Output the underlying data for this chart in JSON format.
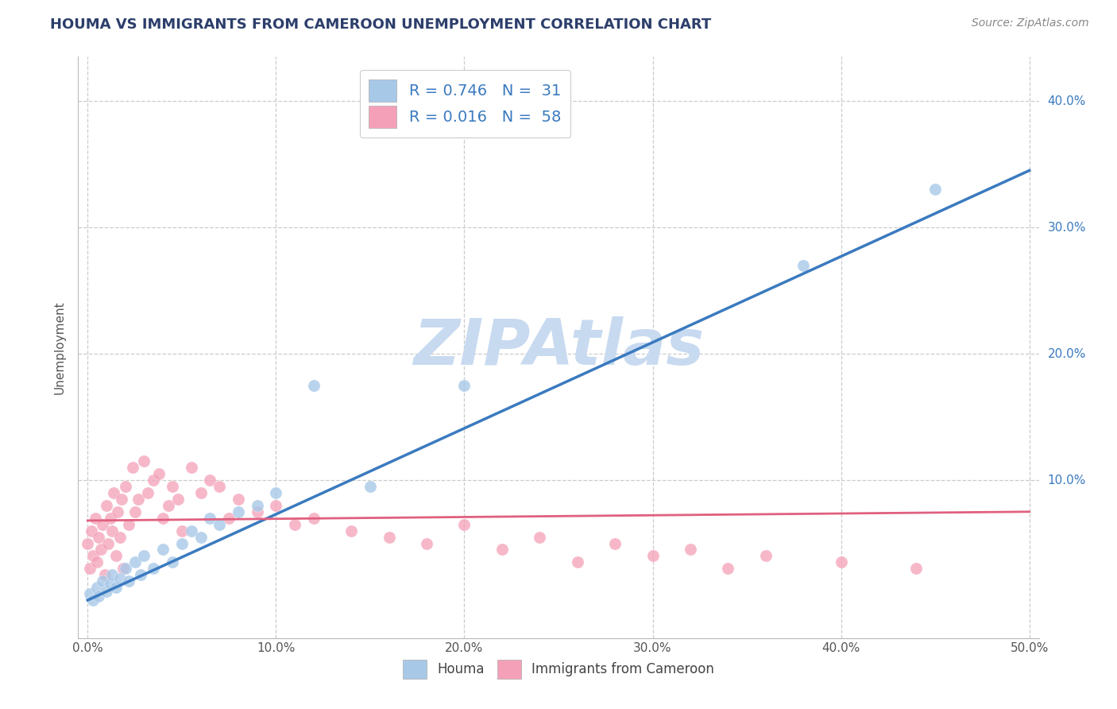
{
  "title": "HOUMA VS IMMIGRANTS FROM CAMEROON UNEMPLOYMENT CORRELATION CHART",
  "source_text": "Source: ZipAtlas.com",
  "ylabel": "Unemployment",
  "xlim": [
    -0.005,
    0.505
  ],
  "ylim": [
    -0.025,
    0.435
  ],
  "xtick_labels": [
    "0.0%",
    "10.0%",
    "20.0%",
    "30.0%",
    "40.0%",
    "50.0%"
  ],
  "xtick_values": [
    0.0,
    0.1,
    0.2,
    0.3,
    0.4,
    0.5
  ],
  "ytick_labels": [
    "10.0%",
    "20.0%",
    "30.0%",
    "40.0%"
  ],
  "ytick_values": [
    0.1,
    0.2,
    0.3,
    0.4
  ],
  "blue_color": "#a8c8e8",
  "pink_color": "#f4a0b8",
  "blue_line_color": "#3a7abf",
  "pink_line_color": "#e06080",
  "title_color": "#2c3e6b",
  "source_color": "#888888",
  "watermark_color": "#c8daf0",
  "R_blue": 0.746,
  "N_blue": 31,
  "R_pink": 0.016,
  "N_pink": 58,
  "blue_scatter_x": [
    0.001,
    0.003,
    0.005,
    0.006,
    0.008,
    0.01,
    0.012,
    0.013,
    0.015,
    0.017,
    0.02,
    0.022,
    0.025,
    0.028,
    0.03,
    0.035,
    0.04,
    0.045,
    0.05,
    0.055,
    0.06,
    0.065,
    0.07,
    0.08,
    0.09,
    0.1,
    0.12,
    0.15,
    0.2,
    0.38,
    0.45
  ],
  "blue_scatter_y": [
    0.01,
    0.005,
    0.015,
    0.008,
    0.02,
    0.012,
    0.018,
    0.025,
    0.015,
    0.022,
    0.03,
    0.02,
    0.035,
    0.025,
    0.04,
    0.03,
    0.045,
    0.035,
    0.05,
    0.06,
    0.055,
    0.07,
    0.065,
    0.075,
    0.08,
    0.09,
    0.175,
    0.095,
    0.175,
    0.27,
    0.33
  ],
  "pink_scatter_x": [
    0.0,
    0.001,
    0.002,
    0.003,
    0.004,
    0.005,
    0.006,
    0.007,
    0.008,
    0.009,
    0.01,
    0.011,
    0.012,
    0.013,
    0.014,
    0.015,
    0.016,
    0.017,
    0.018,
    0.019,
    0.02,
    0.022,
    0.024,
    0.025,
    0.027,
    0.03,
    0.032,
    0.035,
    0.038,
    0.04,
    0.043,
    0.045,
    0.048,
    0.05,
    0.055,
    0.06,
    0.065,
    0.07,
    0.075,
    0.08,
    0.09,
    0.1,
    0.11,
    0.12,
    0.14,
    0.16,
    0.18,
    0.2,
    0.22,
    0.24,
    0.26,
    0.28,
    0.3,
    0.32,
    0.34,
    0.36,
    0.4,
    0.44
  ],
  "pink_scatter_y": [
    0.05,
    0.03,
    0.06,
    0.04,
    0.07,
    0.035,
    0.055,
    0.045,
    0.065,
    0.025,
    0.08,
    0.05,
    0.07,
    0.06,
    0.09,
    0.04,
    0.075,
    0.055,
    0.085,
    0.03,
    0.095,
    0.065,
    0.11,
    0.075,
    0.085,
    0.115,
    0.09,
    0.1,
    0.105,
    0.07,
    0.08,
    0.095,
    0.085,
    0.06,
    0.11,
    0.09,
    0.1,
    0.095,
    0.07,
    0.085,
    0.075,
    0.08,
    0.065,
    0.07,
    0.06,
    0.055,
    0.05,
    0.065,
    0.045,
    0.055,
    0.035,
    0.05,
    0.04,
    0.045,
    0.03,
    0.04,
    0.035,
    0.03
  ],
  "blue_trend_x": [
    0.0,
    0.5
  ],
  "blue_trend_y": [
    0.005,
    0.345
  ],
  "pink_trend_x": [
    0.0,
    0.5
  ],
  "pink_trend_y": [
    0.068,
    0.075
  ],
  "legend_label_blue": "Houma",
  "legend_label_pink": "Immigrants from Cameroon",
  "background_color": "#ffffff",
  "grid_color": "#cccccc"
}
